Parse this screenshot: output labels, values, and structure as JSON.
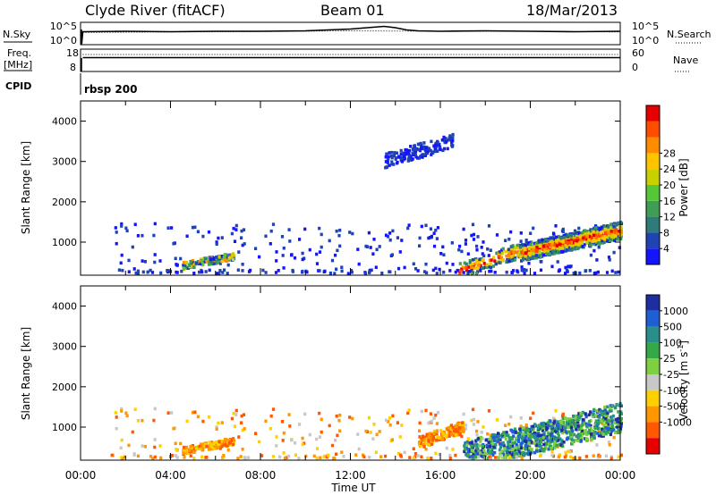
{
  "header": {
    "station": "Clyde River (fitACF)",
    "beam": "Beam 01",
    "date": "18/Mar/2013"
  },
  "labels": {
    "nsky": "N.Sky",
    "nsearch": "N.Search",
    "freq_line1": "Freq.",
    "freq_line2": "[MHz]",
    "nave": "Nave",
    "cpid": "CPID",
    "cpid_value": "rbsp 200"
  },
  "colors": {
    "text": "#000000",
    "axis": "#000000",
    "background": "#ffffff"
  },
  "chart_data": [
    {
      "name": "noise",
      "type": "line",
      "x_range": [
        0,
        24
      ],
      "left_ticks": [
        "10^5",
        "10^0"
      ],
      "right_ticks": [
        "10^5",
        "10^0"
      ],
      "series": [
        {
          "name": "N.Sky",
          "style": "solid",
          "x": [
            0.05,
            0.1,
            2,
            4,
            6,
            8,
            10,
            11,
            12,
            13,
            13.5,
            14,
            14.5,
            15,
            16,
            18,
            20,
            22,
            24
          ],
          "y_frac": [
            0.05,
            0.58,
            0.6,
            0.58,
            0.6,
            0.6,
            0.62,
            0.66,
            0.7,
            0.78,
            0.82,
            0.76,
            0.66,
            0.62,
            0.6,
            0.62,
            0.6,
            0.58,
            0.6
          ]
        },
        {
          "name": "N.Search",
          "style": "dotted",
          "x": [
            0.1,
            4,
            8,
            12,
            16,
            20,
            24
          ],
          "y_frac": [
            0.55,
            0.57,
            0.59,
            0.62,
            0.6,
            0.6,
            0.57
          ]
        }
      ]
    },
    {
      "name": "frequency",
      "type": "line",
      "x_range": [
        0,
        24
      ],
      "left_ticks": [
        "18",
        "8"
      ],
      "right_ticks": [
        "60",
        "0"
      ],
      "series": [
        {
          "name": "Freq.",
          "style": "solid",
          "x": [
            0.1,
            24
          ],
          "y_frac": [
            0.62,
            0.62
          ]
        },
        {
          "name": "Nave",
          "style": "dotted",
          "x": [
            0.1,
            24
          ],
          "y_frac": [
            0.76,
            0.76
          ]
        }
      ]
    },
    {
      "name": "power",
      "type": "heatmap",
      "ylabel": "Slant Range [km]",
      "x_range": [
        0,
        24
      ],
      "y_range": [
        180,
        4500
      ],
      "y_ticks": [
        1000,
        2000,
        3000,
        4000
      ],
      "colorbar": {
        "label": "Power [dB]",
        "tick_labels": [
          "4",
          "8",
          "12",
          "16",
          "20",
          "24",
          "28"
        ],
        "colors": [
          "#1414ff",
          "#1f43b4",
          "#2f7a7a",
          "#3f9e55",
          "#56c838",
          "#c8d000",
          "#ffc300",
          "#ff8c00",
          "#ff4d00",
          "#e60000"
        ]
      },
      "features": [
        {
          "x": [
            4.5,
            6.8
          ],
          "y": [
            420,
            720
          ],
          "level": "mid"
        },
        {
          "x": [
            16.8,
            19.5
          ],
          "y": [
            250,
            900
          ],
          "level": "high"
        },
        {
          "x": [
            19.5,
            24
          ],
          "y": [
            700,
            1400
          ],
          "level": "high"
        },
        {
          "x": [
            13.5,
            16.5
          ],
          "y": [
            3000,
            3600
          ],
          "level": "low"
        }
      ]
    },
    {
      "name": "velocity",
      "type": "heatmap",
      "ylabel": "Slant Range [km]",
      "x_range": [
        0,
        24
      ],
      "y_range": [
        180,
        4500
      ],
      "y_ticks": [
        1000,
        2000,
        3000,
        4000
      ],
      "colorbar": {
        "label": "Velocity [m s",
        "label_sup": "-1",
        "label_end": "]",
        "tick_labels": [
          "1000",
          "500",
          "100",
          "25",
          "-25",
          "-100",
          "-500",
          "-1000"
        ],
        "colors": [
          "#1e2ea0",
          "#1f5fd4",
          "#2a8f8a",
          "#35a848",
          "#7fd040",
          "#c8c8c8",
          "#ffd000",
          "#ff9800",
          "#ff5800",
          "#e60000"
        ]
      },
      "features": [
        {
          "x": [
            4.5,
            6.8
          ],
          "y": [
            420,
            720
          ],
          "class": "orange"
        },
        {
          "x": [
            15.0,
            17.0
          ],
          "y": [
            600,
            1100
          ],
          "class": "orange"
        },
        {
          "x": [
            17.0,
            24
          ],
          "y": [
            200,
            1400
          ],
          "class": "blue-green"
        }
      ]
    }
  ],
  "x_axis": {
    "label": "Time UT",
    "ticks": [
      "00:00",
      "04:00",
      "08:00",
      "12:00",
      "16:00",
      "20:00",
      "00:00"
    ]
  }
}
